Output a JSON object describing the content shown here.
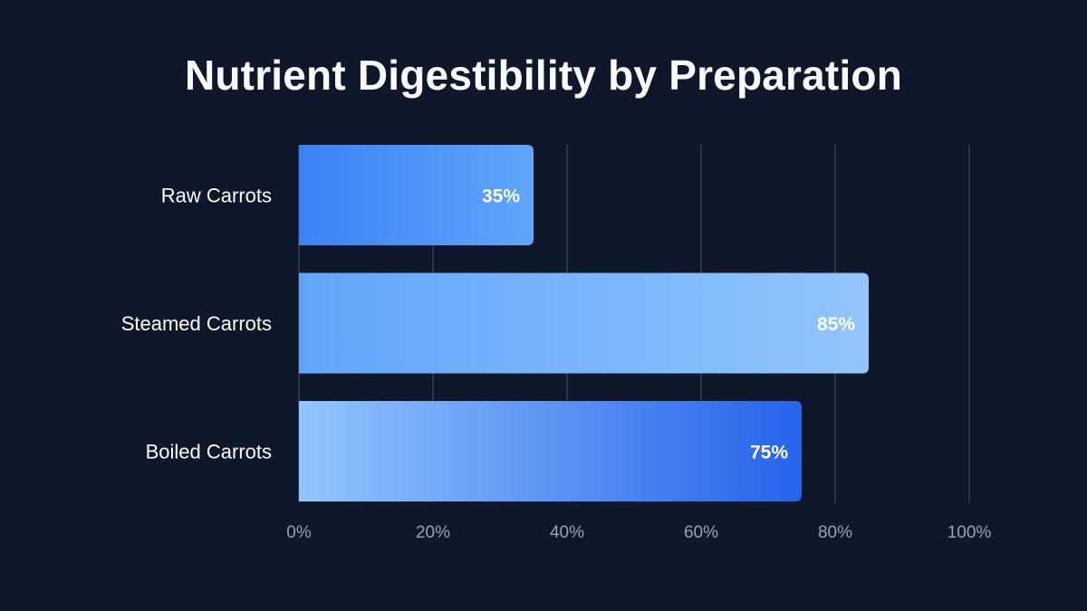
{
  "chart_data": {
    "type": "bar",
    "orientation": "horizontal",
    "title": "Nutrient Digestibility by Preparation",
    "categories": [
      "Raw Carrots",
      "Steamed Carrots",
      "Boiled Carrots"
    ],
    "values": [
      35,
      85,
      75
    ],
    "data_labels": [
      "35%",
      "85%",
      "75%"
    ],
    "xlim": [
      0,
      100
    ],
    "x_ticks": [
      0,
      20,
      40,
      60,
      80,
      100
    ],
    "x_tick_labels": [
      "0%",
      "20%",
      "40%",
      "60%",
      "80%",
      "100%"
    ],
    "xlabel": "",
    "ylabel": "",
    "grid": true,
    "legend": "none",
    "colors": {
      "background": "#0f172a",
      "grid": "#334155",
      "tick_text": "#94a3b8",
      "category_text": "#ffffff",
      "bar_gradients": [
        [
          "#3b82f6",
          "#60a5fa"
        ],
        [
          "#60a5fa",
          "#93c5fd"
        ],
        [
          "#93c5fd",
          "#2563eb"
        ]
      ]
    }
  }
}
